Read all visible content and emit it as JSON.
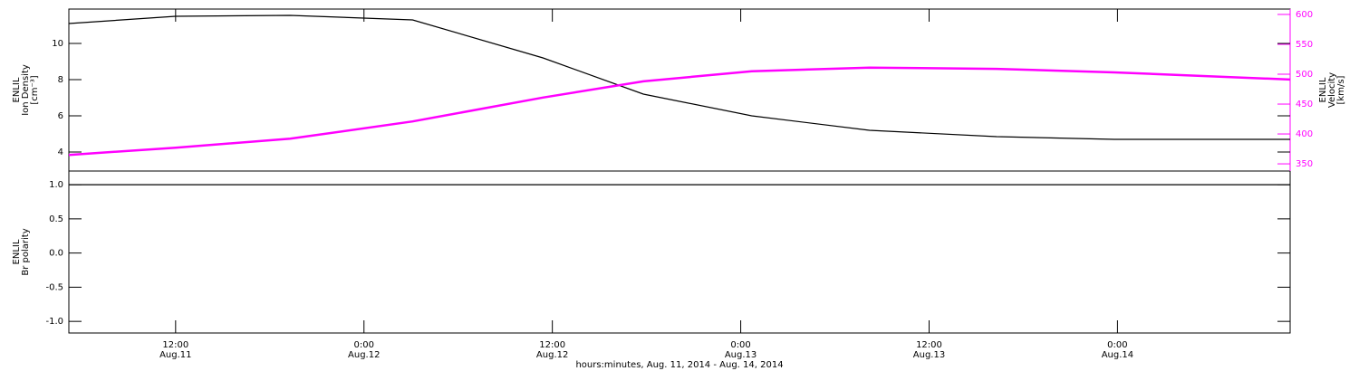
{
  "chart_data": [
    {
      "type": "line",
      "ylabel": [
        "ENLIL",
        "Ion Density",
        "[cm⁻³]"
      ],
      "y2label": [
        "ENLIL",
        "Velocity",
        "[km/s]"
      ],
      "x": [
        5.2,
        12,
        19.3,
        27.1,
        35.4,
        41.8,
        48.7,
        56.2,
        64.3,
        71.8,
        83
      ],
      "xlim": [
        5.2,
        83
      ],
      "ylim": [
        2.95,
        11.9
      ],
      "yticks": [
        4,
        6,
        8,
        10
      ],
      "y2lim": [
        338,
        609
      ],
      "y2ticks": [
        350,
        400,
        450,
        500,
        550,
        600
      ],
      "series": [
        {
          "color": "#000000",
          "values": [
            11.1,
            11.5,
            11.55,
            11.3,
            9.2,
            7.2,
            6.0,
            5.2,
            4.85,
            4.7,
            4.7
          ]
        },
        {
          "color": "#ff00ff",
          "axis": "y2",
          "values": [
            365,
            377,
            392,
            421,
            461,
            488,
            505,
            511,
            509,
            503,
            491
          ]
        }
      ]
    },
    {
      "type": "line",
      "ylabel": [
        "ENLIL",
        "Br polarity"
      ],
      "x": [
        5.2,
        12,
        19.3,
        27.1,
        35.4,
        41.8,
        48.7,
        56.2,
        64.3,
        71.8,
        83
      ],
      "xlim": [
        5.2,
        83
      ],
      "ylim": [
        -1.17,
        1.2
      ],
      "yticks": [
        {
          "value": 1,
          "label": "1.0"
        },
        {
          "value": 0.5,
          "label": "0.5"
        },
        {
          "value": 0,
          "label": "0.0"
        },
        {
          "value": -0.5,
          "label": "-0.5"
        },
        {
          "value": -1,
          "label": "-1.0"
        }
      ],
      "xticks": [
        {
          "value": 12,
          "label": "12:00"
        },
        {
          "value": 24,
          "label": "0:00"
        },
        {
          "value": 36,
          "label": "12:00"
        },
        {
          "value": 48,
          "label": "0:00"
        },
        {
          "value": 60,
          "label": "12:00"
        },
        {
          "value": 72,
          "label": "0:00"
        }
      ],
      "xtick_dates": [
        "Aug.11",
        "Aug.12",
        "Aug.12",
        "Aug.13",
        "Aug.13",
        "Aug.14"
      ],
      "xlabel": "hours:minutes, Aug. 11, 2014 - Aug. 14, 2014",
      "series": [
        {
          "color": "#000000",
          "values": [
            1,
            1,
            1,
            1,
            1,
            1,
            1,
            1,
            1,
            1,
            1
          ]
        }
      ]
    }
  ]
}
